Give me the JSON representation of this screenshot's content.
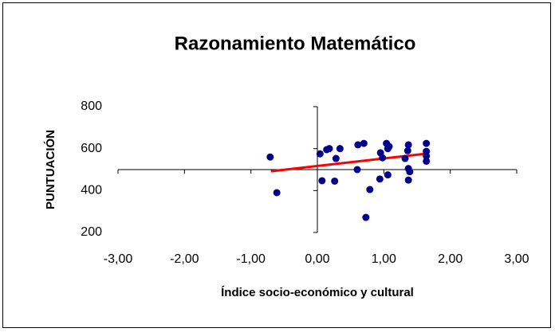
{
  "chart_data": {
    "type": "scatter",
    "title": "Razonamiento Matemático",
    "xlabel": "Índice socio-económico y cultural",
    "ylabel": "PUNTUACIÓN",
    "x": [
      -0.71,
      -0.61,
      0.04,
      0.07,
      0.14,
      0.18,
      0.26,
      0.28,
      0.34,
      0.6,
      0.61,
      0.7,
      0.73,
      0.79,
      0.94,
      0.95,
      0.98,
      1.04,
      1.06,
      1.06,
      1.08,
      1.32,
      1.36,
      1.37,
      1.37,
      1.37,
      1.39,
      1.64,
      1.64,
      1.64,
      1.64
    ],
    "values": [
      560,
      390,
      575,
      447,
      595,
      600,
      445,
      553,
      600,
      500,
      618,
      625,
      272,
      405,
      455,
      580,
      556,
      625,
      600,
      475,
      610,
      553,
      590,
      505,
      618,
      450,
      490,
      625,
      587,
      540,
      565
    ],
    "color": "#00008b",
    "trendline": {
      "x": [
        -0.7,
        1.64
      ],
      "y": [
        492,
        576
      ],
      "color": "#ff0000"
    },
    "xlim": [
      -3,
      3
    ],
    "xticks": [
      {
        "value": -3,
        "label": "-3,00"
      },
      {
        "value": -2,
        "label": "-2,00"
      },
      {
        "value": -1,
        "label": "-1,00"
      },
      {
        "value": 0,
        "label": "0,00"
      },
      {
        "value": 1,
        "label": "1,00"
      },
      {
        "value": 2,
        "label": "2,00"
      },
      {
        "value": 3,
        "label": "3,00"
      }
    ],
    "ylim": [
      200,
      800
    ],
    "yticks": [
      200,
      400,
      600,
      800
    ],
    "x_axis_crosses_at": 500,
    "y_axis_crosses_at": 0
  }
}
